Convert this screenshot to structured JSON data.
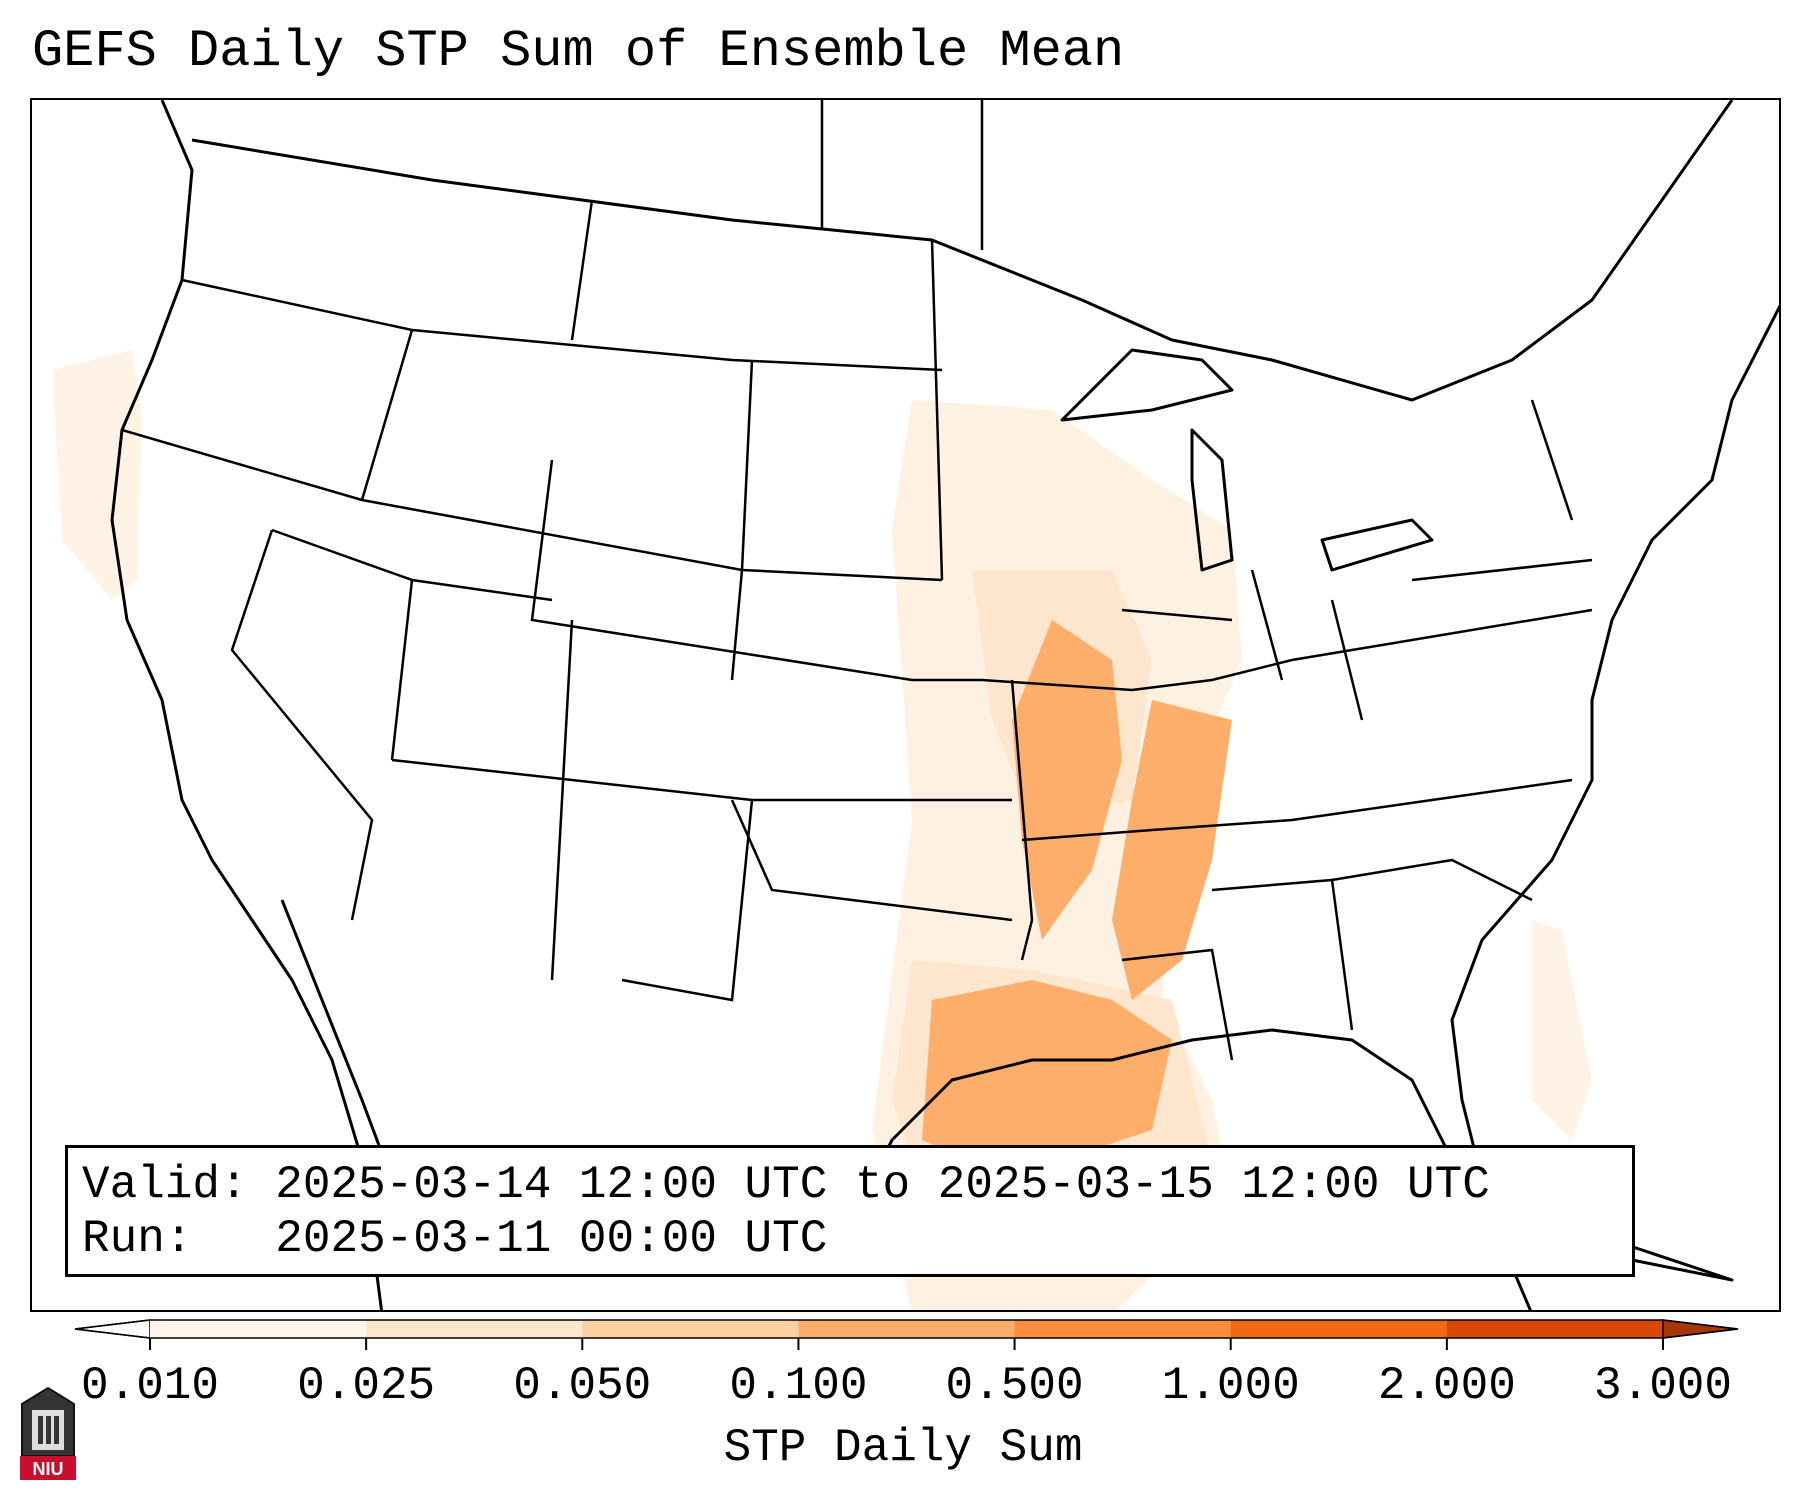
{
  "title": "GEFS Daily STP Sum of Ensemble Mean",
  "info": {
    "valid_label": "Valid:",
    "valid_value": "2025-03-14 12:00 UTC to 2025-03-15 12:00 UTC",
    "run_label": "Run:",
    "run_value": "2025-03-11 00:00 UTC"
  },
  "colorbar": {
    "label": "STP Daily Sum",
    "ticks": [
      "0.010",
      "0.025",
      "0.050",
      "0.100",
      "0.500",
      "1.000",
      "2.000",
      "3.000"
    ],
    "colors": [
      "#fff5eb",
      "#fee6ce",
      "#fdd0a2",
      "#fdae6b",
      "#fd8d3c",
      "#f16913",
      "#d94801"
    ],
    "under_color": "#ffffff",
    "over_color": "#a63603",
    "extend": "both"
  },
  "logo": {
    "text": "NIU",
    "color": "#c8102e"
  },
  "map": {
    "region": "Continental United States",
    "shading_colors": {
      "light": "#fff3e6",
      "low": "#fee6ce",
      "mid": "#fdd0a2",
      "high": "#fdae6b"
    }
  }
}
